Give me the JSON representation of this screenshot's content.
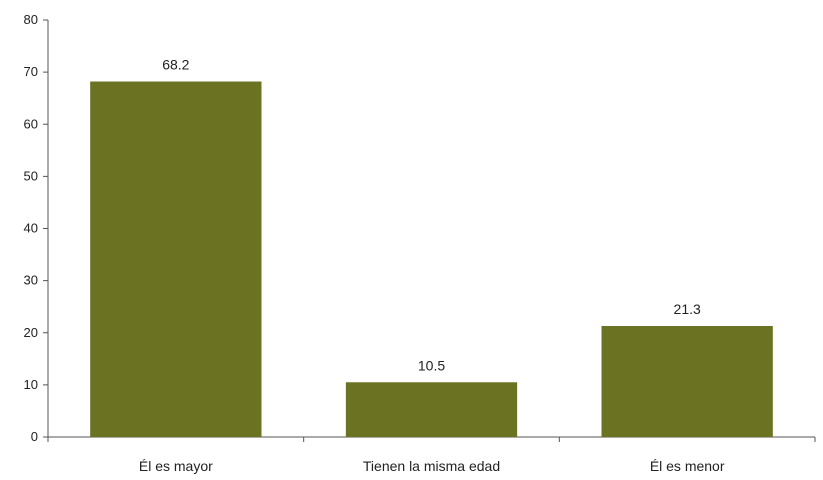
{
  "chart_data": {
    "type": "bar",
    "title": "",
    "xlabel": "",
    "ylabel": "",
    "categories": [
      "Él es mayor",
      "Tienen la misma edad",
      "Él es menor"
    ],
    "values": [
      68.2,
      10.5,
      21.3
    ],
    "value_labels": [
      "68.2",
      "10.5",
      "21.3"
    ],
    "ylim": [
      0,
      80
    ],
    "yticks": [
      0,
      10,
      20,
      30,
      40,
      50,
      60,
      70,
      80
    ],
    "grid": false,
    "legend": "none",
    "bar_color": "#6b7323"
  }
}
